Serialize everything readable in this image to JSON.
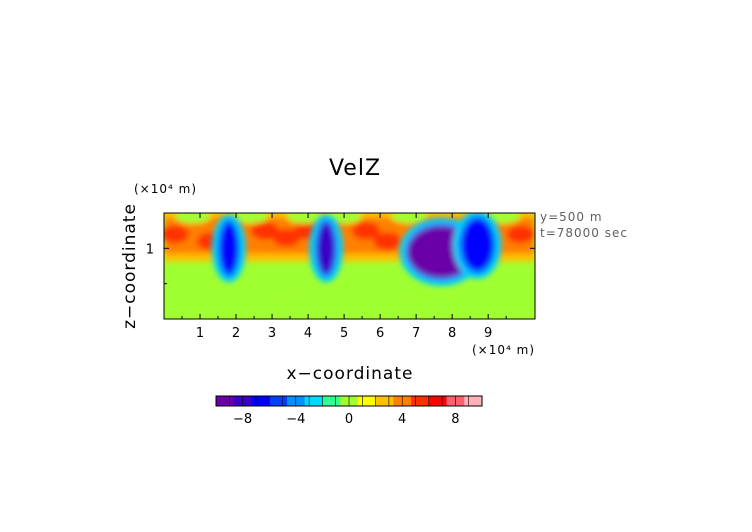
{
  "chart_data": {
    "type": "heatmap",
    "title": "VelZ",
    "xlabel": "x−coordinate",
    "ylabel": "z−coordinate",
    "x_unit": "(×10⁴ m)",
    "z_unit": "(×10⁴ m)",
    "annotations": [
      "y=500  m",
      "t=78000  sec"
    ],
    "x_ticks": [
      1,
      2,
      3,
      4,
      5,
      6,
      7,
      8,
      9
    ],
    "z_ticks": [
      1
    ],
    "xlim": [
      0,
      10.3
    ],
    "zlim": [
      0,
      1.5
    ],
    "colorbar": {
      "ticks": [
        -8,
        -4,
        0,
        4,
        8
      ],
      "range": [
        -10,
        10
      ],
      "colors": [
        "#6a00a8",
        "#3a00c8",
        "#0000ff",
        "#0040ff",
        "#0090ff",
        "#00d8ff",
        "#30ff90",
        "#a0ff30",
        "#ffff00",
        "#ffc000",
        "#ff8000",
        "#ff3000",
        "#ff0000",
        "#ff6070",
        "#ffb0b8"
      ]
    },
    "field": {
      "grid": "x 0..10.3 (×10⁴ m) by z 0..1.5 (×10⁴ m)",
      "background_value": 0.5,
      "upper_band": {
        "z_center": 1.18,
        "value": 6
      },
      "downdrafts": [
        {
          "x": 1.8,
          "z": 1.0,
          "value": -7
        },
        {
          "x": 4.5,
          "z": 1.0,
          "value": -8
        },
        {
          "x": 7.7,
          "z": 0.95,
          "value": -9
        },
        {
          "x": 8.7,
          "z": 1.05,
          "value": -7
        }
      ]
    }
  }
}
